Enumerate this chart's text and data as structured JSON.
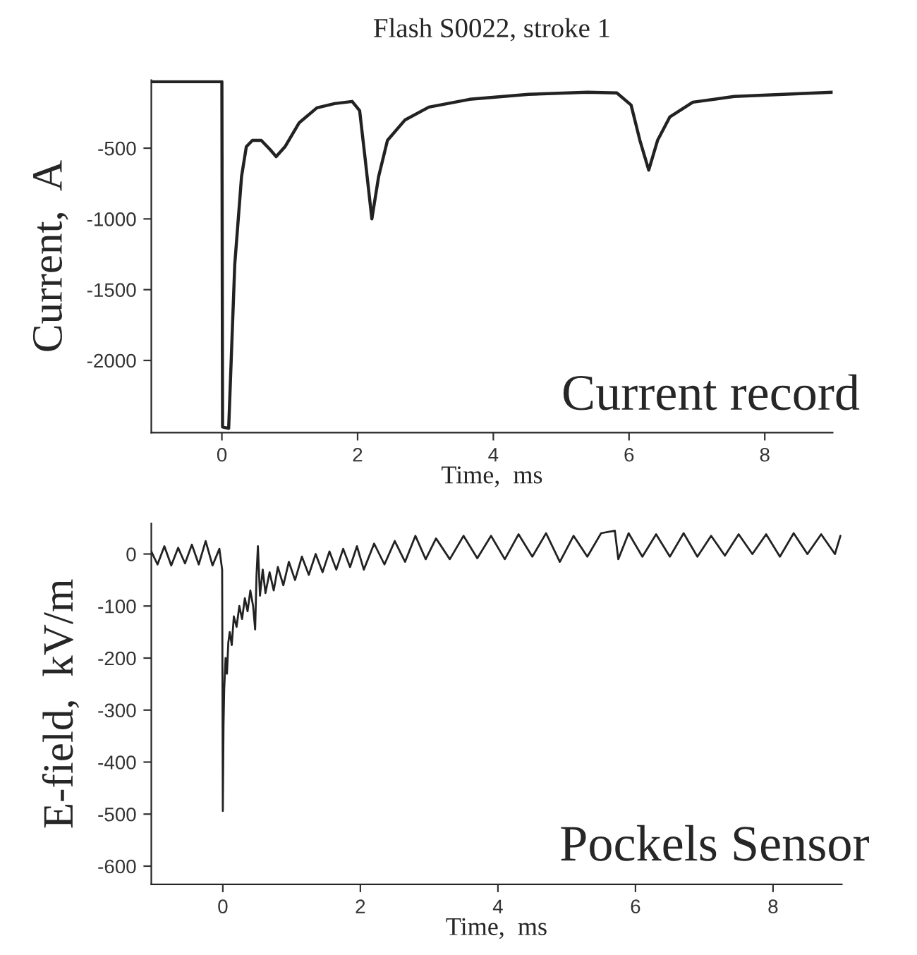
{
  "chart_data": [
    {
      "type": "line",
      "title": "Flash S0022, stroke 1",
      "xlabel": "Time,  ms",
      "ylabel": "Current,  A",
      "annotations": [
        "Current record"
      ],
      "x": [
        -1.04,
        -0.01,
        0.0,
        0.01,
        0.1,
        0.19,
        0.29,
        0.36,
        0.45,
        0.58,
        0.71,
        0.8,
        0.93,
        1.14,
        1.4,
        1.66,
        1.92,
        2.03,
        2.11,
        2.21,
        2.31,
        2.44,
        2.7,
        3.05,
        3.65,
        4.52,
        5.39,
        5.82,
        6.03,
        6.16,
        6.29,
        6.42,
        6.6,
        6.94,
        7.55,
        9.0
      ],
      "series": [
        {
          "color": "#222222",
          "values": [
            -30,
            -30,
            -30,
            -2470,
            -2480,
            -1320,
            -700,
            -490,
            -445,
            -445,
            -510,
            -560,
            -490,
            -320,
            -215,
            -185,
            -170,
            -235,
            -570,
            -1000,
            -700,
            -445,
            -300,
            -210,
            -155,
            -120,
            -105,
            -110,
            -195,
            -445,
            -655,
            -445,
            -280,
            -175,
            -135,
            -105
          ]
        }
      ],
      "xlim": [
        -1.04,
        9.0
      ],
      "ylim": [
        -2510,
        -20
      ],
      "xticks": [
        0,
        2,
        4,
        6,
        8
      ],
      "yticks": [
        -2000,
        -1500,
        -1000,
        -500
      ],
      "grid": false,
      "legend": false,
      "marker": "none",
      "line_style": "solid"
    },
    {
      "type": "line",
      "xlabel": "Time,  ms",
      "ylabel": "E-field,  kV/m",
      "annotations": [
        "Pockels Sensor"
      ],
      "x": [
        -1.04,
        -0.95,
        -0.85,
        -0.75,
        -0.65,
        -0.55,
        -0.45,
        -0.35,
        -0.25,
        -0.15,
        -0.05,
        -0.01,
        0.0,
        0.01,
        0.02,
        0.04,
        0.06,
        0.08,
        0.1,
        0.13,
        0.16,
        0.2,
        0.24,
        0.28,
        0.32,
        0.36,
        0.4,
        0.44,
        0.47,
        0.49,
        0.51,
        0.54,
        0.58,
        0.62,
        0.68,
        0.74,
        0.8,
        0.88,
        0.96,
        1.05,
        1.15,
        1.25,
        1.35,
        1.45,
        1.55,
        1.65,
        1.75,
        1.85,
        1.95,
        2.05,
        2.2,
        2.35,
        2.5,
        2.65,
        2.8,
        2.95,
        3.1,
        3.3,
        3.5,
        3.7,
        3.9,
        4.1,
        4.3,
        4.5,
        4.7,
        4.9,
        5.1,
        5.3,
        5.5,
        5.7,
        5.75,
        5.9,
        6.1,
        6.3,
        6.5,
        6.7,
        6.9,
        7.1,
        7.3,
        7.5,
        7.7,
        7.9,
        8.1,
        8.3,
        8.5,
        8.7,
        8.9,
        8.98
      ],
      "series": [
        {
          "color": "#222222",
          "values": [
            5,
            -20,
            15,
            -22,
            12,
            -18,
            18,
            -20,
            25,
            -22,
            10,
            -30,
            -494,
            -330,
            -260,
            -200,
            -230,
            -170,
            -150,
            -175,
            -120,
            -140,
            -100,
            -125,
            -85,
            -110,
            -70,
            -100,
            -145,
            -40,
            15,
            -80,
            -30,
            -75,
            -35,
            -70,
            -25,
            -60,
            -15,
            -50,
            -5,
            -40,
            0,
            -35,
            5,
            -30,
            10,
            -25,
            15,
            -30,
            20,
            -20,
            25,
            -15,
            35,
            -10,
            30,
            -10,
            35,
            -8,
            35,
            -10,
            38,
            -5,
            40,
            -15,
            35,
            -5,
            40,
            45,
            -10,
            40,
            -5,
            38,
            -5,
            40,
            -5,
            35,
            -3,
            38,
            0,
            38,
            -5,
            40,
            0,
            38,
            0,
            35
          ]
        }
      ],
      "xlim": [
        -1.04,
        9.0
      ],
      "ylim": [
        -635,
        59
      ],
      "xticks": [
        0,
        2,
        4,
        6,
        8
      ],
      "yticks": [
        -600,
        -500,
        -400,
        -300,
        -200,
        -100,
        0
      ],
      "grid": false,
      "legend": false,
      "marker": "none",
      "line_style": "solid"
    }
  ]
}
